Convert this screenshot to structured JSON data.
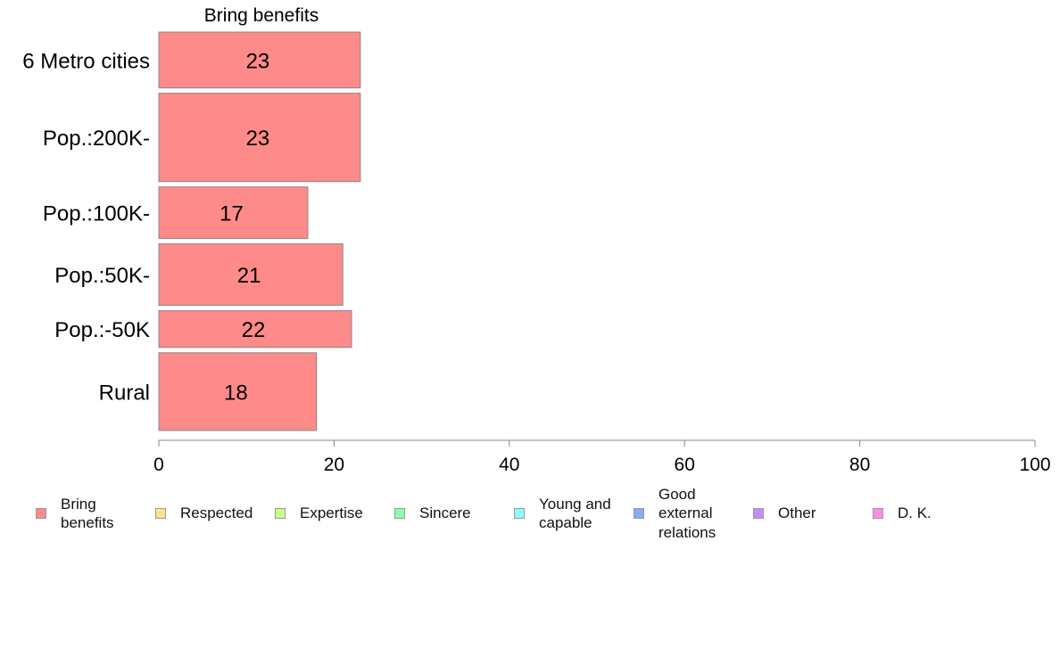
{
  "chart_data": {
    "type": "bar",
    "orientation": "horizontal",
    "title": "Bring benefits",
    "categories": [
      "6 Metro cities",
      "Pop.:200K-",
      "Pop.:100K-",
      "Pop.:50K-",
      "Pop.:-50K",
      "Rural"
    ],
    "series": [
      {
        "name": "Bring benefits",
        "values": [
          23,
          23,
          17,
          21,
          22,
          18
        ]
      }
    ],
    "xlim": [
      0,
      100
    ],
    "xticks": [
      "0",
      "20",
      "40",
      "60",
      "80",
      "100"
    ],
    "bar_relative_sizes": [
      0.79,
      1.25,
      0.73,
      0.87,
      0.52,
      1.1
    ],
    "grid": false,
    "legend_position": "bottom",
    "legend": [
      {
        "label": "Bring\nbenefits",
        "color": "#ff8a8a"
      },
      {
        "label": "Respected",
        "color": "#ffe38a"
      },
      {
        "label": "Expertise",
        "color": "#ccff8a"
      },
      {
        "label": "Sincere",
        "color": "#8affa8"
      },
      {
        "label": "Young and\ncapable",
        "color": "#8affff"
      },
      {
        "label": "Good\nexternal\nrelations",
        "color": "#8aa8ff"
      },
      {
        "label": "Other",
        "color": "#c58aff"
      },
      {
        "label": "D. K.",
        "color": "#ff8aeb"
      }
    ],
    "bar_color": "#ff8a8a",
    "bar_border": "#888888",
    "axis_color": "#888888"
  }
}
